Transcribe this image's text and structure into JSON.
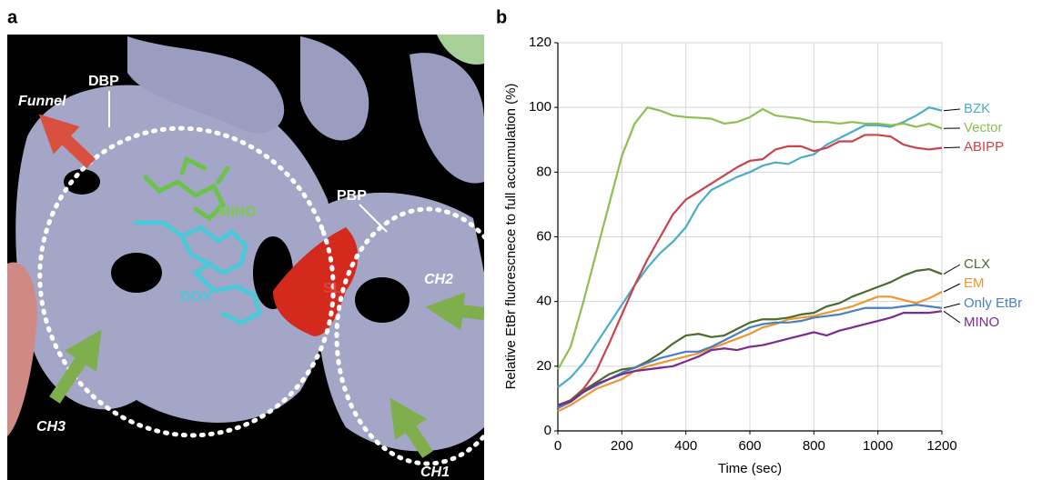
{
  "panels": {
    "a": {
      "label": "a",
      "annotations": {
        "funnel": "Funnel",
        "dbp": "DBP",
        "mino": "MINO",
        "pbp": "PBP",
        "dox": "DOX",
        "sl": "SL",
        "ch2": "CH2",
        "ch3": "CH3",
        "ch1": "CH1"
      }
    },
    "b": {
      "label": "b"
    }
  },
  "chart_data": {
    "type": "line",
    "x_label": "Time (sec)",
    "y_label": "Relative EtBr fluorescnece to full accumulation (%)",
    "xlim": [
      0,
      1200
    ],
    "xticks": [
      0,
      200,
      400,
      600,
      800,
      1000,
      1200
    ],
    "ylim": [
      0,
      120
    ],
    "yticks": [
      0,
      20,
      40,
      60,
      80,
      100,
      120
    ],
    "grid": true,
    "x": [
      0,
      40,
      80,
      120,
      160,
      200,
      240,
      280,
      320,
      360,
      400,
      440,
      480,
      520,
      560,
      600,
      640,
      680,
      720,
      760,
      800,
      840,
      880,
      920,
      960,
      1000,
      1040,
      1080,
      1120,
      1160,
      1200
    ],
    "series": [
      {
        "name": "BZK",
        "color": "#4aaccc",
        "values": [
          13.5,
          16.5,
          21,
          27,
          33,
          39,
          45,
          50.5,
          55,
          58.5,
          63,
          70,
          74.5,
          76.5,
          78.5,
          80,
          82,
          83,
          82.5,
          84.5,
          85.5,
          88.5,
          90.5,
          92.5,
          94.5,
          94.5,
          94,
          95.5,
          97.5,
          100,
          99
        ]
      },
      {
        "name": "Vector",
        "color": "#8cbf50",
        "values": [
          19,
          26,
          40,
          55,
          70,
          85,
          95,
          100,
          99,
          97.5,
          97,
          96.8,
          96.5,
          95,
          95.5,
          97,
          99.5,
          97.5,
          97,
          96.5,
          95.5,
          95.5,
          95,
          95.5,
          95,
          95,
          94.5,
          95,
          94,
          95,
          93.5
        ]
      },
      {
        "name": "ABIPP",
        "color": "#c8434a",
        "values": [
          8,
          9.5,
          13,
          18.5,
          27,
          36,
          45,
          53,
          60,
          67,
          71.5,
          74,
          76.5,
          79,
          81.5,
          83.5,
          84,
          87,
          88,
          88,
          86.5,
          87.5,
          89.5,
          89.5,
          91.5,
          91.5,
          91,
          88.5,
          87.5,
          87,
          87.5
        ]
      },
      {
        "name": "CLX",
        "color": "#4c6b2a",
        "values": [
          7.5,
          9.5,
          12.5,
          15,
          17.5,
          19,
          19.5,
          21.5,
          24,
          27,
          29.5,
          30,
          29,
          29.5,
          31.5,
          33.5,
          34.5,
          34.5,
          35,
          36,
          36.5,
          38.5,
          39.5,
          41.5,
          43,
          44.5,
          46,
          48,
          49.5,
          50,
          48.5
        ]
      },
      {
        "name": "EM",
        "color": "#f0962e",
        "values": [
          6,
          8,
          10.5,
          13,
          14.5,
          16,
          18.5,
          20,
          21,
          22,
          23,
          24,
          25.5,
          27,
          28.5,
          30,
          32,
          33,
          34.5,
          35,
          35.5,
          36.5,
          37.5,
          38.5,
          40,
          41.5,
          41.5,
          40.5,
          39.5,
          41,
          43
        ]
      },
      {
        "name": "Only EtBr",
        "color": "#4a7fc0",
        "values": [
          7,
          9,
          12,
          14,
          16,
          18,
          19.5,
          21,
          22.5,
          23.5,
          24.5,
          24.5,
          26,
          28,
          30,
          32,
          33,
          33.5,
          33.5,
          34,
          35,
          35.5,
          36,
          37,
          38,
          38,
          38,
          38.5,
          39,
          38.5,
          38
        ]
      },
      {
        "name": "MINO",
        "color": "#7b2b8f",
        "values": [
          8,
          9,
          12,
          14.5,
          16,
          17.5,
          18.5,
          19,
          19.5,
          20,
          21.5,
          23,
          25,
          25.5,
          25,
          26,
          26.5,
          27.5,
          28.5,
          29.5,
          30.5,
          29.5,
          31,
          32,
          33,
          34,
          35,
          36.5,
          36.5,
          36.5,
          37
        ]
      }
    ]
  }
}
